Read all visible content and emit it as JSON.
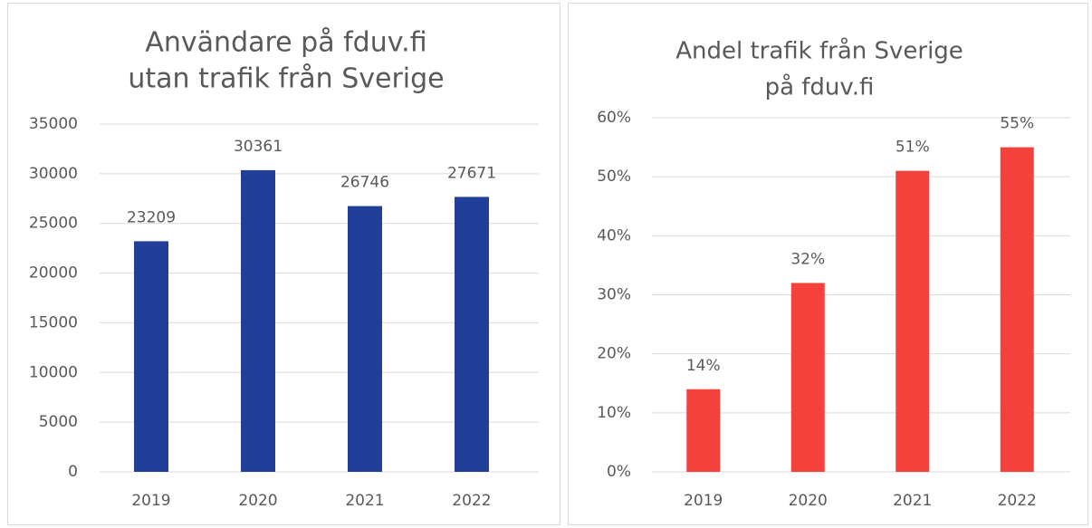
{
  "chart_data": [
    {
      "type": "bar",
      "title": [
        "Användare på fduv.fi",
        "utan trafik från Sverige"
      ],
      "categories": [
        "2019",
        "2020",
        "2021",
        "2022"
      ],
      "values": [
        23209,
        30361,
        26746,
        27671
      ],
      "color": "#213f99",
      "ylim": [
        0,
        35000
      ],
      "yticks": [
        0,
        5000,
        10000,
        15000,
        20000,
        25000,
        30000,
        35000
      ],
      "grid": true
    },
    {
      "type": "bar",
      "title": [
        "Andel trafik från Sverige",
        "på fduv.fi"
      ],
      "categories": [
        "2019",
        "2020",
        "2021",
        "2022"
      ],
      "values": [
        14,
        32,
        51,
        55
      ],
      "value_labels": [
        "14%",
        "32%",
        "51%",
        "55%"
      ],
      "color": "#f5413b",
      "ylim": [
        0,
        60
      ],
      "yticks": [
        {
          "value": 0,
          "label": "0%"
        },
        {
          "value": 10,
          "label": "10%"
        },
        {
          "value": 20,
          "label": "20%"
        },
        {
          "value": 30,
          "label": "30%"
        },
        {
          "value": 40,
          "label": "40%"
        },
        {
          "value": 50,
          "label": "50%"
        },
        {
          "value": 60,
          "label": "60%"
        }
      ],
      "grid": true
    }
  ]
}
